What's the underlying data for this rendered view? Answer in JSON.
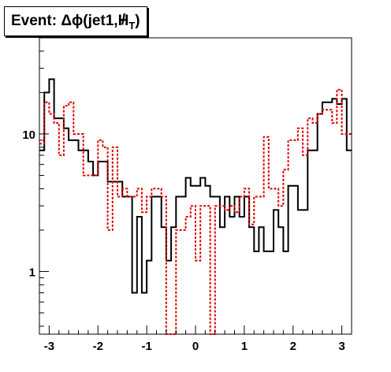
{
  "chart_data": {
    "type": "step",
    "title": "Event: Δϕ(jet1,H̸T)",
    "title_parts": {
      "prefix": "Event: Δϕ(jet1,",
      "symbol": "H",
      "subscript": "T",
      "suffix": ")"
    },
    "xlabel": "",
    "ylabel": "",
    "xlim": [
      -3.2,
      3.2
    ],
    "ylim": [
      0.35,
      50
    ],
    "yscale": "log",
    "grid": false,
    "legend": "none",
    "x_ticks": [
      -3,
      -2,
      -1,
      0,
      1,
      2,
      3
    ],
    "x_tick_labels": [
      "-3",
      "-2",
      "-1",
      "0",
      "1",
      "2",
      "3"
    ],
    "y_ticks": [
      1,
      10
    ],
    "y_tick_labels": [
      "1",
      "10"
    ],
    "bin_edges": [
      -3.2,
      -3.1,
      -3.0,
      -2.9,
      -2.8,
      -2.7,
      -2.6,
      -2.5,
      -2.4,
      -2.3,
      -2.2,
      -2.1,
      -2.0,
      -1.9,
      -1.8,
      -1.7,
      -1.6,
      -1.5,
      -1.4,
      -1.3,
      -1.2,
      -1.1,
      -1.0,
      -0.9,
      -0.8,
      -0.7,
      -0.6,
      -0.5,
      -0.4,
      -0.3,
      -0.2,
      -0.1,
      0.0,
      0.1,
      0.2,
      0.3,
      0.4,
      0.5,
      0.6,
      0.7,
      0.8,
      0.9,
      1.0,
      1.1,
      1.2,
      1.3,
      1.4,
      1.5,
      1.6,
      1.7,
      1.8,
      1.9,
      2.0,
      2.1,
      2.2,
      2.3,
      2.4,
      2.5,
      2.6,
      2.7,
      2.8,
      2.9,
      3.0,
      3.1,
      3.2
    ],
    "series": [
      {
        "color": "#000000",
        "style": "solid",
        "values": [
          7.6,
          20.0,
          25.0,
          13.0,
          13.0,
          11.0,
          9.0,
          9.0,
          7.6,
          7.6,
          6.3,
          5.0,
          6.3,
          6.3,
          4.5,
          4.5,
          4.5,
          3.5,
          3.5,
          0.7,
          2.5,
          0.7,
          1.2,
          3.5,
          3.5,
          2.1,
          1.2,
          2.1,
          3.5,
          3.5,
          4.8,
          4.2,
          4.2,
          4.8,
          4.2,
          3.5,
          3.5,
          2.1,
          3.5,
          2.5,
          3.5,
          2.5,
          3.5,
          2.1,
          1.4,
          2.1,
          1.4,
          1.4,
          2.8,
          2.1,
          1.4,
          4.2,
          4.2,
          2.8,
          2.8,
          7.6,
          7.6,
          14.0,
          17.0,
          17.0,
          18.0,
          16.5,
          18.0,
          7.6
        ]
      },
      {
        "color": "#dd0000",
        "style": "dotted",
        "values": [
          8.5,
          17.0,
          14.0,
          12.0,
          7.0,
          16.0,
          17.0,
          10.0,
          10.0,
          5.0,
          5.0,
          5.0,
          9.0,
          8.0,
          2.0,
          8.0,
          3.5,
          4.0,
          3.5,
          3.5,
          4.0,
          2.7,
          3.5,
          4.0,
          4.0,
          3.5,
          0.35,
          0.35,
          2.0,
          2.0,
          2.5,
          3.0,
          1.2,
          3.0,
          3.0,
          0.35,
          3.0,
          3.0,
          2.8,
          3.0,
          2.7,
          3.5,
          4.0,
          2.2,
          3.5,
          3.5,
          9.5,
          4.0,
          4.0,
          3.0,
          5.5,
          9.0,
          9.0,
          11.0,
          7.0,
          13.0,
          12.0,
          14.0,
          15.0,
          15.0,
          12.0,
          21.0,
          10.0,
          10.0
        ]
      }
    ]
  }
}
